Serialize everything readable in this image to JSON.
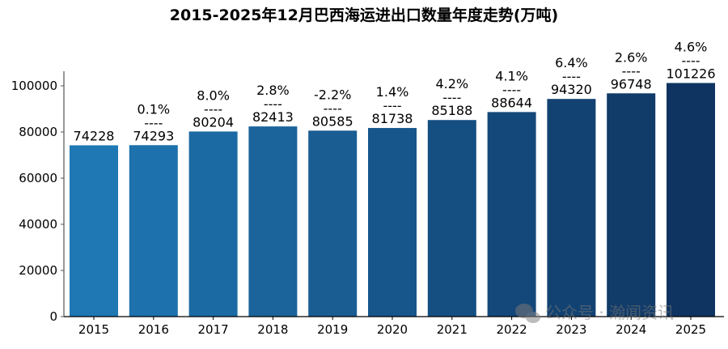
{
  "chart_data": {
    "type": "bar",
    "title": "2015-2025年12月巴西海运进出口数量年度走势(万吨)",
    "categories": [
      "2015",
      "2016",
      "2017",
      "2018",
      "2019",
      "2020",
      "2021",
      "2022",
      "2023",
      "2024",
      "2025"
    ],
    "values": [
      74228,
      74293,
      80204,
      82413,
      80585,
      81738,
      85188,
      88644,
      94320,
      96748,
      101226
    ],
    "growth_labels": [
      "",
      "0.1%",
      "8.0%",
      "2.8%",
      "-2.2%",
      "1.4%",
      "4.2%",
      "4.1%",
      "6.4%",
      "2.6%",
      "4.6%"
    ],
    "separator": "----",
    "ylim": [
      0,
      106000
    ],
    "yticks": [
      0,
      20000,
      40000,
      60000,
      80000,
      100000
    ],
    "grid": false,
    "colors": {
      "start": "#1f78b4",
      "end": "#0f3461"
    },
    "watermark": "公众号 · 瀚闻资讯"
  }
}
